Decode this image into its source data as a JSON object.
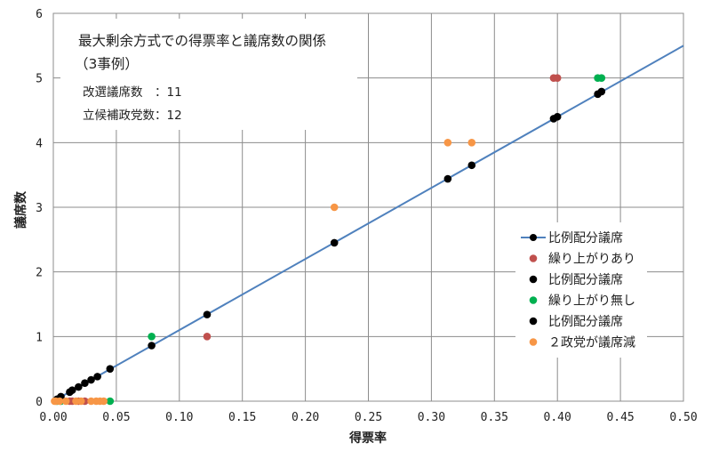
{
  "chart_data": {
    "type": "scatter",
    "xlabel": "得票率",
    "ylabel": "議席数",
    "xlim": [
      0,
      0.5
    ],
    "ylim": [
      0,
      6
    ],
    "xticks": [
      "0.00",
      "0.05",
      "0.10",
      "0.15",
      "0.20",
      "0.25",
      "0.30",
      "0.35",
      "0.40",
      "0.45",
      "0.50"
    ],
    "yticks": [
      "0",
      "1",
      "2",
      "3",
      "4",
      "5",
      "6"
    ],
    "grid": true,
    "legend_position": "right",
    "annotation": {
      "title_line1": "最大剰余方式での得票率と議席数の関係",
      "title_line2": "（3事例）",
      "info_line1": "改選議席数　：11",
      "info_line2": "立候補政党数：12"
    },
    "series": [
      {
        "name": "比例配分議席",
        "kind": "line",
        "color": "#4f81bd",
        "x": [
          0.0,
          0.5
        ],
        "y": [
          0.0,
          5.5
        ]
      },
      {
        "name": "繰り上がりあり",
        "kind": "scatter",
        "color": "#c0504d",
        "x": [
          0.122,
          0.397,
          0.4,
          0.013,
          0.015,
          0.02,
          0.025
        ],
        "y": [
          1,
          5,
          5,
          0,
          0,
          0,
          0
        ]
      },
      {
        "name": "比例配分議席",
        "kind": "scatter",
        "color": "#000000",
        "x": [
          0.122,
          0.397,
          0.4,
          0.013,
          0.015,
          0.02,
          0.025
        ],
        "y": [
          1.34,
          4.37,
          4.4,
          0.14,
          0.17,
          0.22,
          0.28
        ]
      },
      {
        "name": "繰り上がり無し",
        "kind": "scatter",
        "color": "#00b050",
        "x": [
          0.078,
          0.432,
          0.435,
          0.045,
          0.003,
          0.006
        ],
        "y": [
          1,
          5,
          5,
          0,
          0,
          0
        ]
      },
      {
        "name": "比例配分議席",
        "kind": "scatter",
        "color": "#000000",
        "x": [
          0.078,
          0.432,
          0.435,
          0.045,
          0.003,
          0.006,
          0.03,
          0.035
        ],
        "y": [
          0.86,
          4.75,
          4.79,
          0.5,
          0.03,
          0.07,
          0.33,
          0.38
        ]
      },
      {
        "name": "２政党が議席減",
        "kind": "scatter",
        "color": "#f79646",
        "x": [
          0.223,
          0.313,
          0.332,
          0.001,
          0.002,
          0.005,
          0.01,
          0.018,
          0.022,
          0.03,
          0.034,
          0.037,
          0.04
        ],
        "y": [
          3,
          4,
          4,
          0,
          0,
          0,
          0,
          0,
          0,
          0,
          0,
          0,
          0
        ]
      },
      {
        "name": "",
        "kind": "scatter",
        "color": "#000000",
        "x": [
          0.223,
          0.313,
          0.332
        ],
        "y": [
          2.45,
          3.44,
          3.65
        ]
      }
    ]
  }
}
